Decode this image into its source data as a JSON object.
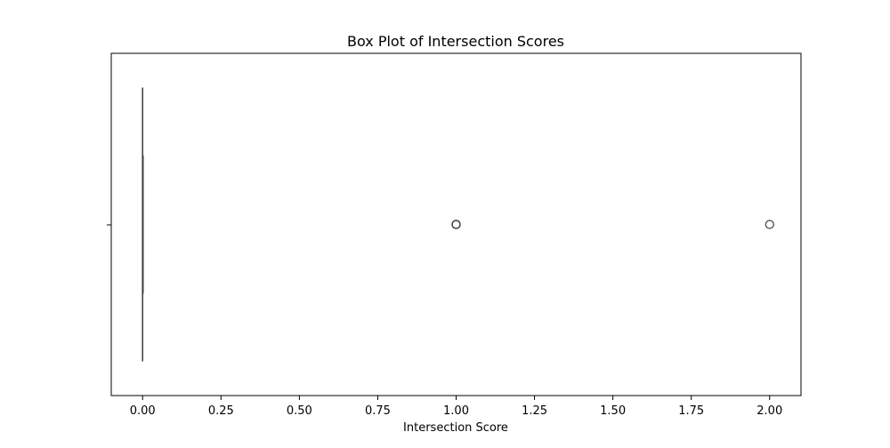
{
  "chart_data": {
    "type": "box",
    "orientation": "horizontal",
    "title": "Box Plot of Intersection Scores",
    "xlabel": "Intersection Score",
    "ylabel": "",
    "xlim": [
      -0.1,
      2.1
    ],
    "x_ticks": [
      0.0,
      0.25,
      0.5,
      0.75,
      1.0,
      1.25,
      1.5,
      1.75,
      2.0
    ],
    "x_tick_labels": [
      "0.00",
      "0.25",
      "0.50",
      "0.75",
      "1.00",
      "1.25",
      "1.50",
      "1.75",
      "2.00"
    ],
    "grid": false,
    "box": {
      "min": 0.0,
      "q1": 0.0,
      "median": 0.0,
      "q3": 0.0,
      "max": 0.0,
      "outliers": [
        1.0,
        1.0,
        1.0,
        1.0,
        2.0
      ]
    },
    "colors": {
      "box_fill": "#3d75af",
      "line": "#3f3f3f",
      "outlier_edge": "#3f3f3f",
      "axes": "#000000"
    }
  }
}
